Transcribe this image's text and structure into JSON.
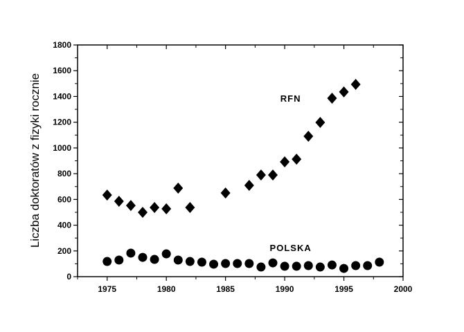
{
  "chart_data": {
    "type": "scatter",
    "title": "",
    "xlabel": "",
    "ylabel": "Liczba doktoratów z fizyki rocznie",
    "xlim": [
      1972.5,
      2000
    ],
    "ylim": [
      0,
      1800
    ],
    "xticks": [
      1975,
      1980,
      1985,
      1990,
      1995,
      2000
    ],
    "yticks": [
      0,
      200,
      400,
      600,
      800,
      1000,
      1200,
      1400,
      1600,
      1800
    ],
    "grid": false,
    "series": [
      {
        "name": "RFN",
        "marker": "diamond",
        "label_at": [
          1990.5,
          1360
        ],
        "x": [
          1975,
          1976,
          1977,
          1978,
          1979,
          1980,
          1981,
          1982,
          1985,
          1987,
          1988,
          1989,
          1990,
          1991,
          1992,
          1993,
          1994,
          1995,
          1996
        ],
        "y": [
          634,
          586,
          553,
          500,
          537,
          527,
          688,
          537,
          650,
          709,
          790,
          790,
          892,
          913,
          1091,
          1198,
          1386,
          1435,
          1494
        ]
      },
      {
        "name": "POLSKA",
        "marker": "circle",
        "label_at": [
          1990.5,
          200
        ],
        "x": [
          1975,
          1976,
          1977,
          1978,
          1979,
          1980,
          1981,
          1982,
          1983,
          1984,
          1985,
          1986,
          1987,
          1988,
          1989,
          1990,
          1991,
          1992,
          1993,
          1994,
          1995,
          1996,
          1997,
          1998
        ],
        "y": [
          118,
          129,
          183,
          150,
          134,
          177,
          129,
          118,
          113,
          97,
          102,
          102,
          102,
          75,
          107,
          81,
          81,
          86,
          75,
          91,
          64,
          86,
          86,
          113
        ]
      }
    ]
  },
  "colors": {
    "marker": "#000000",
    "axis": "#000000"
  }
}
